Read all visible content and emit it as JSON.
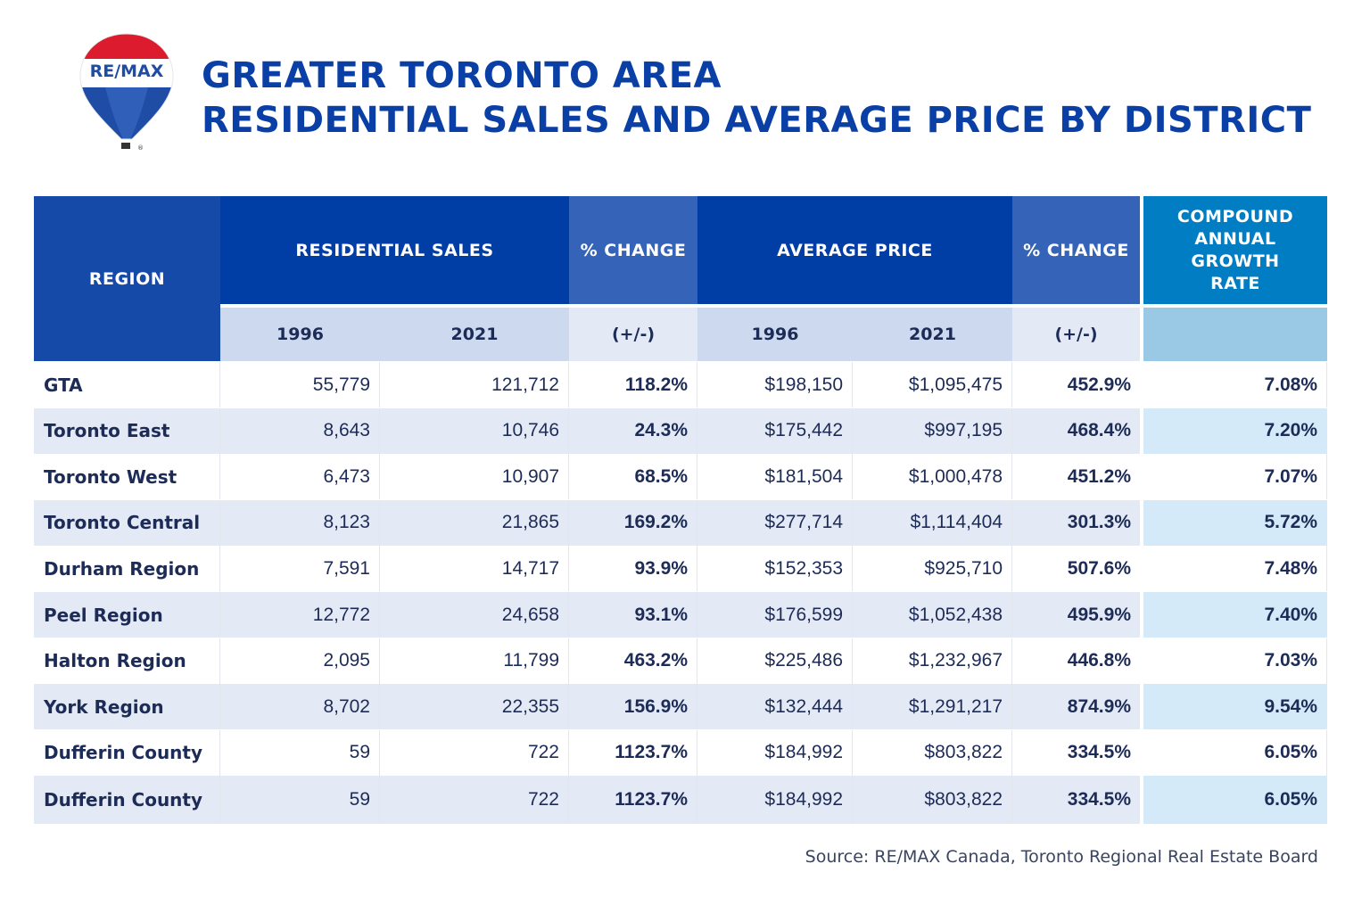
{
  "logo": {
    "text": "RE/MAX",
    "colors": {
      "red": "#dc1c2e",
      "blue": "#003da5"
    }
  },
  "title": {
    "line1": "GREATER TORONTO AREA",
    "line2": "RESIDENTIAL SALES AND AVERAGE PRICE BY DISTRICT"
  },
  "colors": {
    "header_dark": "#003da5",
    "header_region": "#164aa8",
    "header_change": "#3563b8",
    "header_cagr": "#007dc3",
    "sub_light": "#ccd9ee",
    "sub_change": "#e3eaf6",
    "sub_cagr": "#9ac9e6",
    "row_alt": "#e4eaf5",
    "cagr_alt": "#d4eaf8",
    "text": "#1d2b57"
  },
  "chart_data": {
    "type": "table",
    "title": "GREATER TORONTO AREA RESIDENTIAL SALES AND AVERAGE PRICE BY DISTRICT",
    "headers": {
      "region": "REGION",
      "sales": "RESIDENTIAL SALES",
      "sales_change": "% CHANGE",
      "price": "AVERAGE PRICE",
      "price_change": "% CHANGE",
      "cagr": "COMPOUND ANNUAL GROWTH RATE"
    },
    "subheaders": {
      "sales_1996": "1996",
      "sales_2021": "2021",
      "sales_change": "(+/-)",
      "price_1996": "1996",
      "price_2021": "2021",
      "price_change": "(+/-)"
    },
    "rows": [
      [
        "GTA",
        "55,779",
        "121,712",
        "118.2%",
        "$198,150",
        "$1,095,475",
        "452.9%",
        "7.08%"
      ],
      [
        "Toronto East",
        "8,643",
        "10,746",
        "24.3%",
        "$175,442",
        "$997,195",
        "468.4%",
        "7.20%"
      ],
      [
        "Toronto West",
        "6,473",
        "10,907",
        "68.5%",
        "$181,504",
        "$1,000,478",
        "451.2%",
        "7.07%"
      ],
      [
        "Toronto Central",
        "8,123",
        "21,865",
        "169.2%",
        "$277,714",
        "$1,114,404",
        "301.3%",
        "5.72%"
      ],
      [
        "Durham Region",
        "7,591",
        "14,717",
        "93.9%",
        "$152,353",
        "$925,710",
        "507.6%",
        "7.48%"
      ],
      [
        "Peel Region",
        "12,772",
        "24,658",
        "93.1%",
        "$176,599",
        "$1,052,438",
        "495.9%",
        "7.40%"
      ],
      [
        "Halton Region",
        "2,095",
        "11,799",
        "463.2%",
        "$225,486",
        "$1,232,967",
        "446.8%",
        "7.03%"
      ],
      [
        "York Region",
        "8,702",
        "22,355",
        "156.9%",
        "$132,444",
        "$1,291,217",
        "874.9%",
        "9.54%"
      ],
      [
        "Dufferin County",
        "59",
        "722",
        "1123.7%",
        "$184,992",
        "$803,822",
        "334.5%",
        "6.05%"
      ],
      [
        "Dufferin County",
        "59",
        "722",
        "1123.7%",
        "$184,992",
        "$803,822",
        "334.5%",
        "6.05%"
      ]
    ]
  },
  "source": "Source: RE/MAX Canada, Toronto Regional Real Estate Board"
}
